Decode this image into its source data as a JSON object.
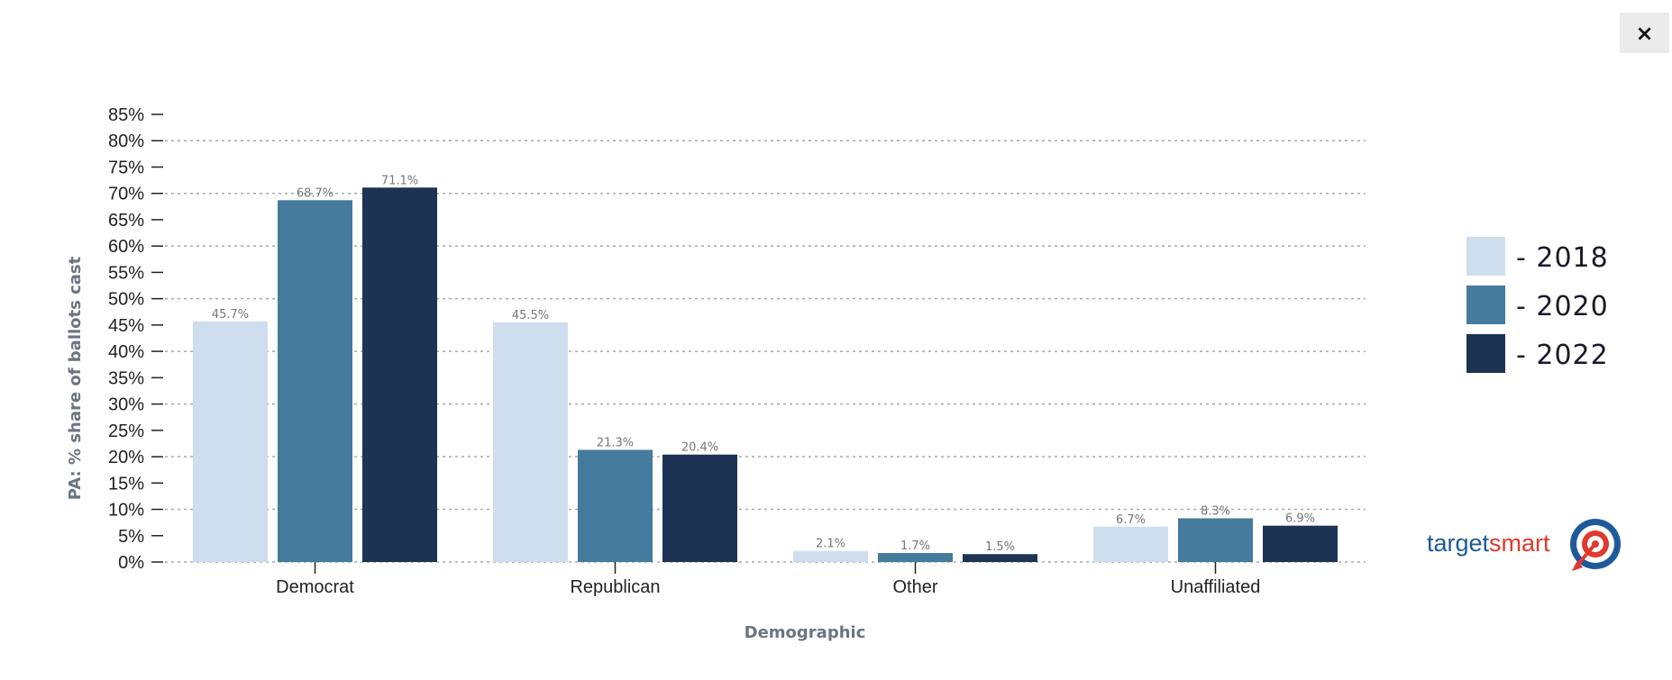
{
  "close": {
    "label": "×"
  },
  "logo": {
    "part1": "target",
    "part2": "smart"
  },
  "chart_data": {
    "type": "bar",
    "title": "",
    "xlabel": "Demographic",
    "ylabel": "PA: % share of ballots cast",
    "ylim": [
      0,
      85
    ],
    "yticks": [
      "0%",
      "5%",
      "10%",
      "15%",
      "20%",
      "25%",
      "30%",
      "35%",
      "40%",
      "45%",
      "50%",
      "55%",
      "60%",
      "65%",
      "70%",
      "75%",
      "80%",
      "85%"
    ],
    "categories": [
      "Democrat",
      "Republican",
      "Other",
      "Unaffiliated"
    ],
    "series": [
      {
        "name": "2018",
        "values": [
          45.7,
          45.5,
          2.1,
          6.7
        ],
        "labels": [
          "45.7%",
          "45.5%",
          "2.1%",
          "6.7%"
        ],
        "color": "#cfdeee"
      },
      {
        "name": "2020",
        "values": [
          68.7,
          21.3,
          1.7,
          8.3
        ],
        "labels": [
          "68.7%",
          "21.3%",
          "1.7%",
          "8.3%"
        ],
        "color": "#457b9d"
      },
      {
        "name": "2022",
        "values": [
          71.1,
          20.4,
          1.5,
          6.9
        ],
        "labels": [
          "71.1%",
          "20.4%",
          "1.5%",
          "6.9%"
        ],
        "color": "#1d3354"
      }
    ],
    "legend": {
      "position": "right",
      "entries": [
        "- 2018",
        "- 2020",
        "- 2022"
      ]
    },
    "grid": true
  }
}
